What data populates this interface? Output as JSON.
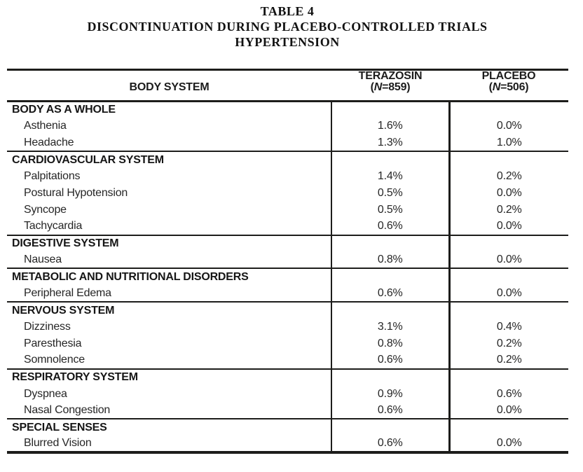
{
  "title": {
    "line1": "TABLE 4",
    "line2": "DISCONTINUATION DURING PLACEBO-CONTROLLED TRIALS",
    "line3": "HYPERTENSION"
  },
  "colors": {
    "rule": "#1d1d1b",
    "text": "#1c1c1c",
    "background": "#ffffff"
  },
  "table": {
    "columns": {
      "body_system": "BODY SYSTEM",
      "terazosin": {
        "name": "TERAZOSIN",
        "n_open": "(",
        "n_italic": "N",
        "n_rest": "=859)"
      },
      "placebo": {
        "name": "PLACEBO",
        "n_open": "(",
        "n_italic": "N",
        "n_rest": "=506)"
      }
    },
    "sections": [
      {
        "header": "BODY AS A WHOLE",
        "rows": [
          {
            "label": "Asthenia",
            "terazosin": "1.6%",
            "placebo": "0.0%"
          },
          {
            "label": "Headache",
            "terazosin": "1.3%",
            "placebo": "1.0%"
          }
        ]
      },
      {
        "header": "CARDIOVASCULAR SYSTEM",
        "rows": [
          {
            "label": "Palpitations",
            "terazosin": "1.4%",
            "placebo": "0.2%"
          },
          {
            "label": "Postural Hypotension",
            "terazosin": "0.5%",
            "placebo": "0.0%"
          },
          {
            "label": "Syncope",
            "terazosin": "0.5%",
            "placebo": "0.2%"
          },
          {
            "label": "Tachycardia",
            "terazosin": "0.6%",
            "placebo": "0.0%"
          }
        ]
      },
      {
        "header": "DIGESTIVE SYSTEM",
        "rows": [
          {
            "label": "Nausea",
            "terazosin": "0.8%",
            "placebo": "0.0%"
          }
        ]
      },
      {
        "header": "METABOLIC AND NUTRITIONAL DISORDERS",
        "rows": [
          {
            "label": "Peripheral Edema",
            "terazosin": "0.6%",
            "placebo": "0.0%"
          }
        ]
      },
      {
        "header": "NERVOUS SYSTEM",
        "rows": [
          {
            "label": "Dizziness",
            "terazosin": "3.1%",
            "placebo": "0.4%"
          },
          {
            "label": "Paresthesia",
            "terazosin": "0.8%",
            "placebo": "0.2%"
          },
          {
            "label": "Somnolence",
            "terazosin": "0.6%",
            "placebo": "0.2%"
          }
        ]
      },
      {
        "header": "RESPIRATORY SYSTEM",
        "rows": [
          {
            "label": "Dyspnea",
            "terazosin": "0.9%",
            "placebo": "0.6%"
          },
          {
            "label": "Nasal Congestion",
            "terazosin": "0.6%",
            "placebo": "0.0%"
          }
        ]
      },
      {
        "header": "SPECIAL SENSES",
        "rows": [
          {
            "label": "Blurred Vision",
            "terazosin": "0.6%",
            "placebo": "0.0%"
          }
        ]
      }
    ]
  }
}
